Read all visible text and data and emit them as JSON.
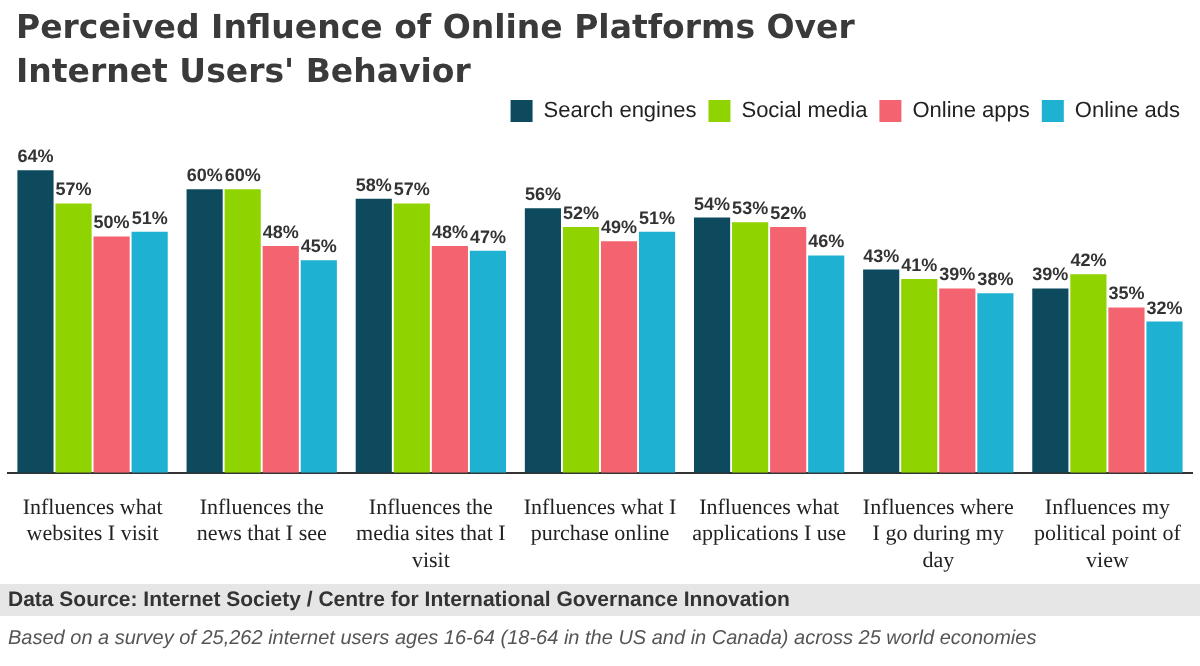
{
  "chart_data": {
    "type": "bar",
    "title": "Perceived Influence of Online Platforms Over Internet Users' Behavior",
    "categories": [
      "Influences what websites I visit",
      "Influences the news that I see",
      "Influences the media sites that I visit",
      "Influences what I purchase online",
      "Influences what applications I use",
      "Influences where I go during my day",
      "Influences my political point of view"
    ],
    "series": [
      {
        "name": "Search engines",
        "color": "#0d4a5e",
        "values": [
          64,
          60,
          58,
          56,
          54,
          43,
          39
        ],
        "value_labels": [
          "64%",
          "60%",
          "58%",
          "56%",
          "54%",
          "43%",
          "39%"
        ]
      },
      {
        "name": "Social media",
        "color": "#8fd400",
        "values": [
          57,
          60,
          57,
          52,
          53,
          41,
          42
        ],
        "value_labels": [
          "57%",
          "60%",
          "57%",
          "52%",
          "53%",
          "41%",
          "42%"
        ]
      },
      {
        "name": "Online apps",
        "color": "#f36470",
        "values": [
          50,
          48,
          48,
          49,
          52,
          39,
          35
        ],
        "value_labels": [
          "50%",
          "48%",
          "48%",
          "49%",
          "52%",
          "39%",
          "35%"
        ]
      },
      {
        "name": "Online ads",
        "color": "#1fb1d1",
        "values": [
          51,
          45,
          47,
          51,
          46,
          38,
          32
        ],
        "value_labels": [
          "51%",
          "45%",
          "47%",
          "51%",
          "46%",
          "38%",
          "32%"
        ]
      }
    ],
    "legend": "top right",
    "grid": false,
    "annotations": [
      "Data Source: Internet Society / Centre for International Governance Innovation",
      "Based on a survey of 25,262 internet users ages 16-64 (18-64 in the US and in Canada) across 25 world economies"
    ]
  }
}
